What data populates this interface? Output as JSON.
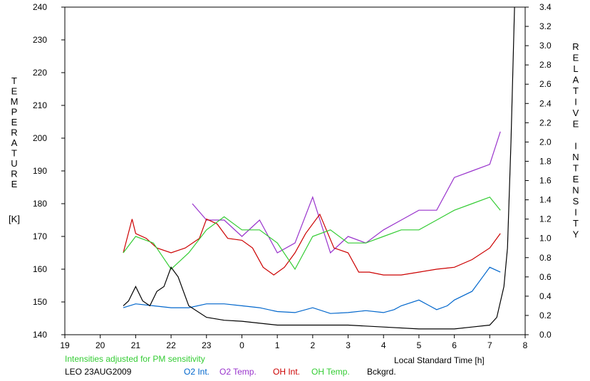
{
  "chart_data": {
    "type": "line",
    "title": "",
    "xlabel": "Local Standard Time [h]",
    "ylabel_left": "TEMPERATURE [K]",
    "ylabel_left_letters": [
      "T",
      "E",
      "M",
      "P",
      "E",
      "R",
      "A",
      "T",
      "U",
      "R",
      "E"
    ],
    "ylabel_left_unit": "[K]",
    "ylabel_right": "RELATIVE INTENSITY",
    "ylabel_right_letters": [
      "R",
      "E",
      "L",
      "A",
      "T",
      "I",
      "V",
      "E",
      "",
      "I",
      "N",
      "T",
      "E",
      "N",
      "S",
      "I",
      "T",
      "Y"
    ],
    "note": "Intensities adjusted for PM sensitivity",
    "station": "LEO 23AUG2009",
    "x_ticks": [
      "19",
      "20",
      "21",
      "22",
      "23",
      "0",
      "1",
      "2",
      "3",
      "4",
      "5",
      "6",
      "7",
      "8"
    ],
    "x_range": [
      19,
      32
    ],
    "y_left_ticks": [
      140,
      150,
      160,
      170,
      180,
      190,
      200,
      210,
      220,
      230,
      240
    ],
    "y_left_range": [
      140,
      240
    ],
    "y_right_ticks": [
      "0.0",
      "0.2",
      "0.4",
      "0.6",
      "0.8",
      "1.0",
      "1.2",
      "1.4",
      "1.6",
      "1.8",
      "2.0",
      "2.2",
      "2.4",
      "2.6",
      "2.8",
      "3.0",
      "3.2",
      "3.4"
    ],
    "y_right_range": [
      0.0,
      3.4
    ],
    "grid": false,
    "legend_placement": "bottom",
    "series": [
      {
        "name": "O2 Int.",
        "axis": "right",
        "color": "#0066cc",
        "x": [
          20.65,
          21.0,
          21.5,
          22.0,
          22.5,
          23.0,
          23.5,
          24.0,
          24.5,
          25.0,
          25.5,
          26.0,
          26.5,
          27.0,
          27.5,
          28.0,
          28.3,
          28.5,
          29.0,
          29.3,
          29.5,
          29.8,
          30.0,
          30.5,
          30.8,
          31.0,
          31.3
        ],
        "y": [
          0.28,
          0.32,
          0.3,
          0.28,
          0.28,
          0.32,
          0.32,
          0.3,
          0.28,
          0.24,
          0.23,
          0.28,
          0.22,
          0.23,
          0.25,
          0.23,
          0.26,
          0.3,
          0.36,
          0.3,
          0.26,
          0.3,
          0.36,
          0.45,
          0.6,
          0.7,
          0.65
        ]
      },
      {
        "name": "O2 Temp.",
        "axis": "left",
        "color": "#9933cc",
        "x": [
          22.6,
          23.0,
          23.5,
          24.0,
          24.5,
          25.0,
          25.5,
          26.0,
          26.5,
          27.0,
          27.5,
          28.0,
          28.5,
          29.0,
          29.5,
          30.0,
          30.5,
          31.0,
          31.3
        ],
        "y": [
          180,
          175,
          175,
          170,
          175,
          165,
          168,
          182,
          165,
          170,
          168,
          172,
          175,
          178,
          178,
          188,
          190,
          192,
          202
        ]
      },
      {
        "name": "OH Int.",
        "axis": "right",
        "color": "#cc0000",
        "x": [
          20.65,
          20.9,
          21.0,
          21.3,
          21.6,
          22.0,
          22.4,
          22.8,
          23.0,
          23.3,
          23.6,
          24.0,
          24.3,
          24.6,
          24.9,
          25.2,
          25.5,
          25.8,
          26.2,
          26.6,
          27.0,
          27.3,
          27.6,
          28.0,
          28.5,
          29.0,
          29.5,
          30.0,
          30.5,
          31.0,
          31.3
        ],
        "y": [
          0.85,
          1.2,
          1.05,
          1.0,
          0.9,
          0.85,
          0.9,
          1.0,
          1.2,
          1.15,
          1.0,
          0.98,
          0.9,
          0.7,
          0.62,
          0.7,
          0.85,
          1.05,
          1.25,
          0.9,
          0.85,
          0.65,
          0.65,
          0.62,
          0.62,
          0.65,
          0.68,
          0.7,
          0.78,
          0.9,
          1.05
        ]
      },
      {
        "name": "OH Temp.",
        "axis": "left",
        "color": "#33cc33",
        "x": [
          20.65,
          21.0,
          21.5,
          22.0,
          22.5,
          23.0,
          23.5,
          24.0,
          24.5,
          25.0,
          25.5,
          26.0,
          26.5,
          27.0,
          27.5,
          28.0,
          28.5,
          29.0,
          29.5,
          30.0,
          30.5,
          31.0,
          31.3
        ],
        "y": [
          165,
          170,
          168,
          160,
          165,
          172,
          176,
          172,
          172,
          168,
          160,
          170,
          172,
          168,
          168,
          170,
          172,
          172,
          175,
          178,
          180,
          182,
          178
        ]
      },
      {
        "name": "Bckgrd.",
        "axis": "right",
        "color": "#000000",
        "x": [
          20.65,
          20.8,
          21.0,
          21.2,
          21.4,
          21.6,
          21.8,
          22.0,
          22.2,
          22.5,
          23.0,
          23.5,
          24.0,
          25.0,
          26.0,
          27.0,
          28.0,
          29.0,
          30.0,
          30.5,
          31.0,
          31.2,
          31.4,
          31.5,
          31.6,
          31.7
        ],
        "y": [
          0.3,
          0.35,
          0.5,
          0.35,
          0.3,
          0.45,
          0.5,
          0.7,
          0.6,
          0.3,
          0.18,
          0.15,
          0.14,
          0.1,
          0.1,
          0.1,
          0.08,
          0.06,
          0.06,
          0.08,
          0.1,
          0.18,
          0.5,
          0.9,
          2.0,
          3.4
        ]
      }
    ]
  }
}
